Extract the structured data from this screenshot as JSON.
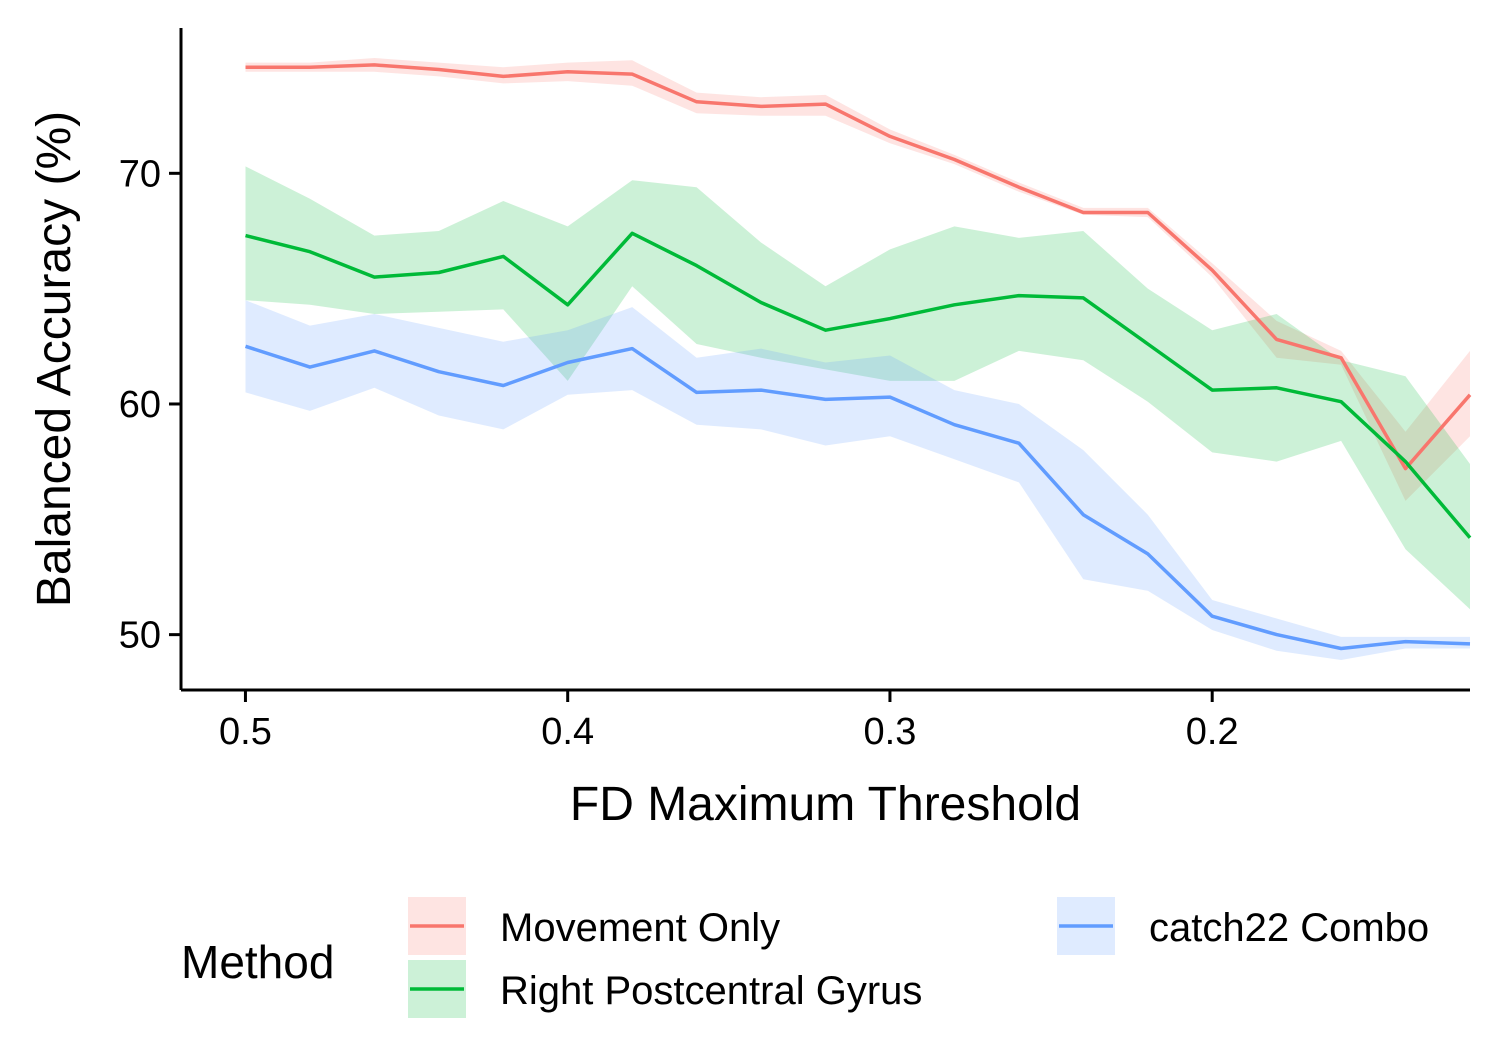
{
  "chart_data": {
    "type": "line",
    "xlabel": "FD Maximum Threshold",
    "ylabel": "Balanced Accuracy (%)",
    "x_reversed": true,
    "xlim": [
      0.52,
      0.12
    ],
    "ylim": [
      47.6,
      76.3
    ],
    "x_ticks": [
      0.5,
      0.4,
      0.3,
      0.2
    ],
    "x_tick_labels": [
      "0.5",
      "0.4",
      "0.3",
      "0.2"
    ],
    "y_ticks": [
      50,
      60,
      70
    ],
    "y_tick_labels": [
      "50",
      "60",
      "70"
    ],
    "grid": false,
    "legend": {
      "title": "Method",
      "placement": "bottom"
    },
    "x": [
      0.5,
      0.48,
      0.46,
      0.44,
      0.42,
      0.4,
      0.38,
      0.36,
      0.34,
      0.32,
      0.3,
      0.28,
      0.26,
      0.24,
      0.22,
      0.2,
      0.18,
      0.16,
      0.14,
      0.12
    ],
    "series": [
      {
        "name": "Movement Only",
        "color": "#F8766D",
        "values": [
          74.6,
          74.6,
          74.7,
          74.5,
          74.2,
          74.4,
          74.3,
          73.1,
          72.9,
          73.0,
          71.6,
          70.6,
          69.4,
          68.3,
          68.3,
          65.8,
          62.8,
          62.0,
          57.2,
          60.4
        ],
        "lower": [
          74.4,
          74.4,
          74.4,
          74.2,
          73.9,
          74.0,
          73.8,
          72.6,
          72.5,
          72.5,
          71.3,
          70.4,
          69.2,
          68.2,
          68.1,
          65.5,
          62.0,
          61.7,
          55.8,
          58.6
        ],
        "upper": [
          74.8,
          74.8,
          75.0,
          74.8,
          74.6,
          74.8,
          74.9,
          73.5,
          73.3,
          73.4,
          71.9,
          70.8,
          69.6,
          68.5,
          68.5,
          66.1,
          63.6,
          62.3,
          58.8,
          62.3
        ]
      },
      {
        "name": "Right Postcentral Gyrus",
        "color": "#00BA38",
        "values": [
          67.3,
          66.6,
          65.5,
          65.7,
          66.4,
          64.3,
          67.4,
          66.0,
          64.4,
          63.2,
          63.7,
          64.3,
          64.7,
          64.6,
          62.6,
          60.6,
          60.7,
          60.1,
          57.5,
          54.2
        ],
        "lower": [
          64.5,
          64.3,
          63.9,
          64.0,
          64.1,
          61.0,
          65.1,
          62.6,
          62.0,
          61.5,
          61.0,
          61.0,
          62.3,
          61.9,
          60.1,
          57.9,
          57.5,
          58.4,
          53.7,
          51.1
        ],
        "upper": [
          70.3,
          68.9,
          67.3,
          67.5,
          68.8,
          67.7,
          69.7,
          69.4,
          67.0,
          65.1,
          66.7,
          67.7,
          67.2,
          67.5,
          65.0,
          63.2,
          63.9,
          61.9,
          61.2,
          57.4
        ]
      },
      {
        "name": "catch22 Combo",
        "color": "#619CFF",
        "values": [
          62.5,
          61.6,
          62.3,
          61.4,
          60.8,
          61.8,
          62.4,
          60.5,
          60.6,
          60.2,
          60.3,
          59.1,
          58.3,
          55.2,
          53.5,
          50.8,
          50.0,
          49.4,
          49.7,
          49.6
        ],
        "lower": [
          60.5,
          59.7,
          60.7,
          59.5,
          58.9,
          60.4,
          60.6,
          59.1,
          58.9,
          58.2,
          58.6,
          57.6,
          56.6,
          52.4,
          51.9,
          50.2,
          49.3,
          48.9,
          49.4,
          49.4
        ],
        "upper": [
          64.5,
          63.4,
          63.9,
          63.3,
          62.7,
          63.2,
          64.2,
          62.0,
          62.4,
          61.8,
          62.1,
          60.6,
          60.0,
          58.0,
          55.2,
          51.5,
          50.7,
          49.9,
          49.9,
          49.9
        ]
      }
    ]
  }
}
